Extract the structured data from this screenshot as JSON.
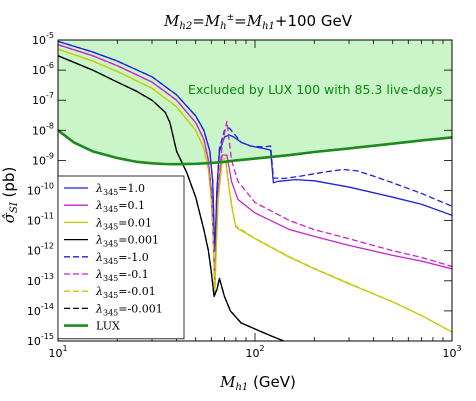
{
  "chart_data": {
    "type": "line",
    "title": "M_h2 = M_h± = M_h1 + 100 GeV",
    "title_parts": {
      "m1": "M",
      "s1": "h2",
      "m2": "=M",
      "s2": "h",
      "sup2": "±",
      "m3": "=M",
      "s3": "h1",
      "tail": "+100 GeV"
    },
    "xlabel": "M_h1 (GeV)",
    "xlabel_parts": {
      "m": "M",
      "s": "h1",
      "unit": " (GeV)"
    },
    "ylabel": "σ̂_SI (pb)",
    "ylabel_parts": {
      "m": "σ̂",
      "s": "SI",
      "unit": " (pb)"
    },
    "x_scale": "log",
    "y_scale": "log",
    "xlim": [
      10,
      1000
    ],
    "ylim": [
      1e-15,
      1e-05
    ],
    "x_ticks": [
      {
        "value": 10,
        "label": "10",
        "sup": "1"
      },
      {
        "value": 100,
        "label": "10",
        "sup": "2"
      },
      {
        "value": 1000,
        "label": "10",
        "sup": "3"
      }
    ],
    "y_ticks": [
      {
        "value": 1e-05,
        "label": "10",
        "sup": "-5"
      },
      {
        "value": 1e-06,
        "label": "10",
        "sup": "-6"
      },
      {
        "value": 1e-07,
        "label": "10",
        "sup": "-7"
      },
      {
        "value": 1e-08,
        "label": "10",
        "sup": "-8"
      },
      {
        "value": 1e-09,
        "label": "10",
        "sup": "-9"
      },
      {
        "value": 1e-10,
        "label": "10",
        "sup": "-10"
      },
      {
        "value": 1e-11,
        "label": "10",
        "sup": "-11"
      },
      {
        "value": 1e-12,
        "label": "10",
        "sup": "-12"
      },
      {
        "value": 1e-13,
        "label": "10",
        "sup": "-13"
      },
      {
        "value": 1e-14,
        "label": "10",
        "sup": "-14"
      },
      {
        "value": 1e-15,
        "label": "10",
        "sup": "-15"
      }
    ],
    "annotation": "Excluded by LUX 100 with 85.3 live-days",
    "excluded_region_color": "#c9f5c9",
    "legend_position": "lower-left",
    "series": [
      {
        "name": "λ345=1.0",
        "lambda": "1.0",
        "color": "#1f1fdd",
        "style": "solid",
        "points": [
          [
            10,
            9e-06
          ],
          [
            15,
            4e-06
          ],
          [
            20,
            2e-06
          ],
          [
            30,
            6e-07
          ],
          [
            40,
            1.5e-07
          ],
          [
            50,
            3e-08
          ],
          [
            55,
            1e-08
          ],
          [
            59,
            2e-09
          ],
          [
            61,
            2e-10
          ],
          [
            62,
            5e-12
          ],
          [
            62.5,
            1e-12
          ],
          [
            63,
            3e-12
          ],
          [
            64,
            1e-10
          ],
          [
            66,
            2e-09
          ],
          [
            70,
            6e-09
          ],
          [
            74,
            7e-09
          ],
          [
            78,
            6e-09
          ],
          [
            85,
            4e-09
          ],
          [
            95,
            3e-09
          ],
          [
            110,
            2.5e-09
          ],
          [
            120,
            2.2e-09
          ],
          [
            124,
            1.8e-10
          ],
          [
            130,
            2e-10
          ],
          [
            160,
            2.3e-10
          ],
          [
            200,
            2.1e-10
          ],
          [
            300,
            1.3e-10
          ],
          [
            500,
            6e-11
          ],
          [
            700,
            3.5e-11
          ],
          [
            1000,
            1.5e-11
          ]
        ]
      },
      {
        "name": "λ345=0.1",
        "lambda": "0.1",
        "color": "#cc22cc",
        "style": "solid",
        "points": [
          [
            10,
            7e-06
          ],
          [
            15,
            3e-06
          ],
          [
            20,
            1.4e-06
          ],
          [
            30,
            4e-07
          ],
          [
            40,
            1e-07
          ],
          [
            50,
            1.8e-08
          ],
          [
            55,
            5e-09
          ],
          [
            58,
            1e-09
          ],
          [
            60,
            1e-10
          ],
          [
            61.5,
            2e-12
          ],
          [
            62.5,
            1e-13
          ],
          [
            63.5,
            2e-12
          ],
          [
            65,
            1e-10
          ],
          [
            68,
            1.5e-09
          ],
          [
            72,
            1.5e-09
          ],
          [
            76,
            2e-10
          ],
          [
            82,
            5e-11
          ],
          [
            100,
            1.8e-11
          ],
          [
            150,
            5e-12
          ],
          [
            200,
            3e-12
          ],
          [
            300,
            1.5e-12
          ],
          [
            500,
            7e-13
          ],
          [
            700,
            4.5e-13
          ],
          [
            1000,
            2.5e-13
          ]
        ]
      },
      {
        "name": "λ345=0.01",
        "lambda": "0.01",
        "color": "#c8c800",
        "style": "solid",
        "points": [
          [
            10,
            5e-06
          ],
          [
            15,
            2e-06
          ],
          [
            20,
            9e-07
          ],
          [
            30,
            2.5e-07
          ],
          [
            40,
            6e-08
          ],
          [
            50,
            1e-08
          ],
          [
            55,
            2.5e-09
          ],
          [
            58,
            5e-10
          ],
          [
            60,
            5e-11
          ],
          [
            61.5,
            2e-12
          ],
          [
            62.5,
            4e-14
          ],
          [
            63.5,
            1e-12
          ],
          [
            65,
            5e-11
          ],
          [
            68,
            8e-10
          ],
          [
            71,
            9e-10
          ],
          [
            74,
            1e-10
          ],
          [
            77,
            2e-11
          ],
          [
            80,
            6e-12
          ],
          [
            100,
            2.5e-12
          ],
          [
            150,
            6e-13
          ],
          [
            200,
            2.5e-13
          ],
          [
            300,
            8e-14
          ],
          [
            500,
            2e-14
          ],
          [
            700,
            7e-15
          ],
          [
            1000,
            2e-15
          ]
        ]
      },
      {
        "name": "λ345=0.001",
        "lambda": "0.001",
        "color": "#000000",
        "style": "solid",
        "points": [
          [
            10,
            3e-06
          ],
          [
            15,
            1e-06
          ],
          [
            20,
            4e-07
          ],
          [
            25,
            2e-07
          ],
          [
            30,
            1e-07
          ],
          [
            35,
            4e-08
          ],
          [
            37,
            1.8e-08
          ],
          [
            40,
            2e-09
          ],
          [
            45,
            4e-10
          ],
          [
            50,
            6e-11
          ],
          [
            55,
            5e-12
          ],
          [
            58,
            1e-12
          ],
          [
            60,
            2e-13
          ],
          [
            62,
            3e-14
          ],
          [
            63,
            4e-14
          ],
          [
            64,
            5e-14
          ],
          [
            66,
            1.2e-13
          ],
          [
            70,
            3e-14
          ],
          [
            75,
            1e-14
          ],
          [
            85,
            4e-15
          ],
          [
            100,
            2.5e-15
          ],
          [
            120,
            1.5e-15
          ],
          [
            140,
            1e-15
          ]
        ]
      },
      {
        "name": "λ345=-1.0",
        "lambda": "-1.0",
        "color": "#1f1fdd",
        "style": "dashed",
        "points": [
          [
            10,
            9e-06
          ],
          [
            15,
            4e-06
          ],
          [
            20,
            2e-06
          ],
          [
            30,
            6e-07
          ],
          [
            40,
            1.5e-07
          ],
          [
            50,
            3e-08
          ],
          [
            55,
            1e-08
          ],
          [
            59,
            2e-09
          ],
          [
            61,
            2e-10
          ],
          [
            62,
            5e-12
          ],
          [
            62.5,
            1e-12
          ],
          [
            63,
            3e-12
          ],
          [
            64,
            1e-10
          ],
          [
            66,
            2.5e-09
          ],
          [
            70,
            1e-08
          ],
          [
            74,
            1.2e-08
          ],
          [
            78,
            8e-09
          ],
          [
            85,
            4e-09
          ],
          [
            95,
            3e-09
          ],
          [
            110,
            2.8e-09
          ],
          [
            120,
            3e-09
          ],
          [
            124,
            2.6e-10
          ],
          [
            140,
            2.5e-10
          ],
          [
            170,
            3e-10
          ],
          [
            220,
            4e-10
          ],
          [
            280,
            5e-10
          ],
          [
            330,
            4.5e-10
          ],
          [
            400,
            3e-10
          ],
          [
            500,
            1.8e-10
          ],
          [
            700,
            8e-11
          ],
          [
            1000,
            3e-11
          ]
        ]
      },
      {
        "name": "λ345=-0.1",
        "lambda": "-0.1",
        "color": "#cc22cc",
        "style": "dashed",
        "points": [
          [
            10,
            7e-06
          ],
          [
            15,
            3e-06
          ],
          [
            20,
            1.4e-06
          ],
          [
            30,
            4e-07
          ],
          [
            40,
            1e-07
          ],
          [
            50,
            1.8e-08
          ],
          [
            55,
            5e-09
          ],
          [
            58,
            1e-09
          ],
          [
            60,
            1e-10
          ],
          [
            61.5,
            2e-12
          ],
          [
            62.5,
            1e-13
          ],
          [
            63.5,
            2e-12
          ],
          [
            65,
            1e-10
          ],
          [
            68,
            3e-09
          ],
          [
            72,
            2e-08
          ],
          [
            76,
            1e-09
          ],
          [
            82,
            2e-10
          ],
          [
            100,
            4e-11
          ],
          [
            150,
            1e-11
          ],
          [
            200,
            5e-12
          ],
          [
            300,
            2.5e-12
          ],
          [
            500,
            1e-12
          ],
          [
            700,
            6e-13
          ],
          [
            1000,
            3e-13
          ]
        ]
      },
      {
        "name": "λ345=-0.01",
        "lambda": "-0.01",
        "color": "#c8c800",
        "style": "dashed",
        "points": [
          [
            10,
            5e-06
          ],
          [
            15,
            2e-06
          ],
          [
            20,
            9e-07
          ],
          [
            30,
            2.5e-07
          ],
          [
            40,
            6e-08
          ],
          [
            50,
            1e-08
          ],
          [
            55,
            2.5e-09
          ],
          [
            58,
            5e-10
          ],
          [
            60,
            5e-11
          ],
          [
            61.5,
            2e-12
          ],
          [
            62.5,
            4e-14
          ],
          [
            63.5,
            1e-12
          ],
          [
            65,
            5e-11
          ],
          [
            68,
            1e-09
          ],
          [
            71,
            1.2e-09
          ],
          [
            74,
            1.2e-10
          ],
          [
            77,
            2.2e-11
          ],
          [
            80,
            6.5e-12
          ],
          [
            100,
            2.6e-12
          ],
          [
            150,
            6.2e-13
          ],
          [
            200,
            2.6e-13
          ],
          [
            300,
            8.2e-14
          ],
          [
            500,
            2e-14
          ],
          [
            700,
            7e-15
          ],
          [
            1000,
            2e-15
          ]
        ]
      },
      {
        "name": "λ345=-0.001",
        "lambda": "-0.001",
        "color": "#000000",
        "style": "dashed",
        "points": [
          [
            10,
            3e-06
          ],
          [
            15,
            1e-06
          ],
          [
            20,
            4e-07
          ],
          [
            25,
            2e-07
          ],
          [
            30,
            1e-07
          ],
          [
            35,
            4e-08
          ],
          [
            37,
            1.8e-08
          ],
          [
            40,
            2e-09
          ],
          [
            45,
            4e-10
          ],
          [
            50,
            6e-11
          ],
          [
            55,
            5e-12
          ],
          [
            58,
            1e-12
          ],
          [
            60,
            2e-13
          ],
          [
            62,
            3e-14
          ],
          [
            63,
            4e-14
          ],
          [
            64,
            5e-14
          ],
          [
            66,
            1.2e-13
          ],
          [
            70,
            3e-14
          ],
          [
            75,
            1e-14
          ],
          [
            85,
            4e-15
          ],
          [
            100,
            2.5e-15
          ],
          [
            120,
            1.5e-15
          ],
          [
            140,
            1e-15
          ]
        ]
      },
      {
        "name": "LUX",
        "lambda": "",
        "color": "#1e8a1e",
        "style": "solid-thick",
        "points": [
          [
            10,
            1e-08
          ],
          [
            12,
            4e-09
          ],
          [
            15,
            2e-09
          ],
          [
            20,
            1.2e-09
          ],
          [
            25,
            9e-10
          ],
          [
            30,
            8e-10
          ],
          [
            35,
            7.6e-10
          ],
          [
            40,
            7.5e-10
          ],
          [
            50,
            7.7e-10
          ],
          [
            60,
            8.2e-10
          ],
          [
            70,
            9e-10
          ],
          [
            80,
            1e-09
          ],
          [
            100,
            1.15e-09
          ],
          [
            150,
            1.5e-09
          ],
          [
            200,
            1.9e-09
          ],
          [
            300,
            2.5e-09
          ],
          [
            500,
            3.6e-09
          ],
          [
            700,
            4.6e-09
          ],
          [
            1000,
            5.8e-09
          ]
        ]
      }
    ]
  }
}
